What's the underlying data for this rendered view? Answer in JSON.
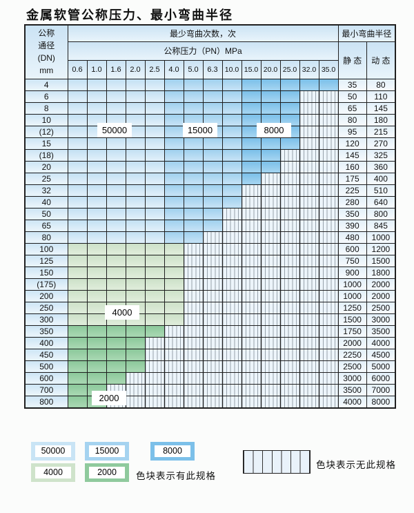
{
  "title": "金属软管公称压力、最小弯曲半径",
  "table": {
    "corner_header": "公称\n通径\n(DN)\nmm",
    "bend_cycles_header": "最少弯曲次数，次",
    "pressure_header": "公称压力（PN）MPa",
    "radius_header": "最小弯曲半径",
    "static_header": "静 态",
    "dynamic_header": "动 态",
    "pressure_columns": [
      "0.6",
      "1.0",
      "1.6",
      "2.0",
      "2.5",
      "4.0",
      "5.0",
      "6.3",
      "10.0",
      "15.0",
      "20.0",
      "25.0",
      "32.0",
      "35.0"
    ],
    "cell_categories": {
      "a": "50000",
      "b": "15000",
      "c": "8000",
      "g": "4000",
      "h": "2000",
      "n": "no-spec"
    },
    "rows": [
      {
        "dn": "4",
        "cells": "aaaaabbbbccccc",
        "static": "35",
        "dynamic": "80"
      },
      {
        "dn": "6",
        "cells": "aaaaabbbbcccnn",
        "static": "50",
        "dynamic": "110"
      },
      {
        "dn": "8",
        "cells": "aaaaabbbbcccnn",
        "static": "65",
        "dynamic": "145"
      },
      {
        "dn": "10",
        "cells": "aaaaabbbbcccnn",
        "static": "80",
        "dynamic": "180"
      },
      {
        "dn": "(12)",
        "cells": "aaaaabbbbcccnn",
        "static": "95",
        "dynamic": "215"
      },
      {
        "dn": "15",
        "cells": "aaaaabbbbcccnn",
        "static": "120",
        "dynamic": "270"
      },
      {
        "dn": "(18)",
        "cells": "aaaaabbbbccnnn",
        "static": "145",
        "dynamic": "325"
      },
      {
        "dn": "20",
        "cells": "aaaaabbbbccnnn",
        "static": "160",
        "dynamic": "360"
      },
      {
        "dn": "25",
        "cells": "aaaaabbbbcnnnn",
        "static": "175",
        "dynamic": "400"
      },
      {
        "dn": "32",
        "cells": "aaaaabbbbnnnnn",
        "static": "225",
        "dynamic": "510"
      },
      {
        "dn": "40",
        "cells": "aaaaabbbbnnnnn",
        "static": "280",
        "dynamic": "640"
      },
      {
        "dn": "50",
        "cells": "aaaaabbbnnnnnn",
        "static": "350",
        "dynamic": "800"
      },
      {
        "dn": "65",
        "cells": "aaaaabbbnnnnnn",
        "static": "390",
        "dynamic": "845"
      },
      {
        "dn": "80",
        "cells": "aaaaabbnnnnnnn",
        "static": "480",
        "dynamic": "1000"
      },
      {
        "dn": "100",
        "cells": "ggggggnnnnnnnn",
        "static": "600",
        "dynamic": "1200"
      },
      {
        "dn": "125",
        "cells": "ggggggnnnnnnnn",
        "static": "750",
        "dynamic": "1500"
      },
      {
        "dn": "150",
        "cells": "ggggggnnnnnnnn",
        "static": "900",
        "dynamic": "1800"
      },
      {
        "dn": "(175)",
        "cells": "ggggggnnnnnnnn",
        "static": "1000",
        "dynamic": "2000"
      },
      {
        "dn": "200",
        "cells": "ggggggnnnnnnnn",
        "static": "1000",
        "dynamic": "2000"
      },
      {
        "dn": "250",
        "cells": "ggggggnnnnnnnn",
        "static": "1250",
        "dynamic": "2500"
      },
      {
        "dn": "300",
        "cells": "ggggggnnnnnnnn",
        "static": "1500",
        "dynamic": "3000"
      },
      {
        "dn": "350",
        "cells": "hhhhhnnnnnnnnn",
        "static": "1750",
        "dynamic": "3500"
      },
      {
        "dn": "400",
        "cells": "hhhhnnnnnnnnnn",
        "static": "2000",
        "dynamic": "4000"
      },
      {
        "dn": "450",
        "cells": "hhhhnnnnnnnnnn",
        "static": "2250",
        "dynamic": "4500"
      },
      {
        "dn": "500",
        "cells": "hhhhnnnnnnnnnn",
        "static": "2500",
        "dynamic": "5000"
      },
      {
        "dn": "600",
        "cells": "hhhnnnnnnnnnnn",
        "static": "3000",
        "dynamic": "6000"
      },
      {
        "dn": "700",
        "cells": "hhnnnnnnnnnnnn",
        "static": "3500",
        "dynamic": "7000"
      },
      {
        "dn": "800",
        "cells": "hhnnnnnnnnnnnn",
        "static": "4000",
        "dynamic": "8000"
      }
    ]
  },
  "overlay_labels": {
    "b50000": "50000",
    "b15000": "15000",
    "b8000": "8000",
    "b4000": "4000",
    "b2000": "2000"
  },
  "legend": {
    "items": [
      {
        "label": "50000",
        "category": "c50"
      },
      {
        "label": "15000",
        "category": "c15"
      },
      {
        "label": "8000",
        "category": "c8"
      },
      {
        "label": "4000",
        "category": "c4"
      },
      {
        "label": "2000",
        "category": "c2"
      }
    ],
    "has_spec_note": "色块表示有此规格",
    "no_spec_note": "色块表示无此规格"
  },
  "colors": {
    "cycles_50000": "#c9e4f5",
    "cycles_15000": "#a5d3f0",
    "cycles_8000": "#7cc0e9",
    "cycles_4000": "#cfe3cb",
    "cycles_2000": "#8fca9d",
    "no_spec_bg": "#edf5fb",
    "header_bg": "#cde5f5",
    "border": "#1f1f1f"
  }
}
